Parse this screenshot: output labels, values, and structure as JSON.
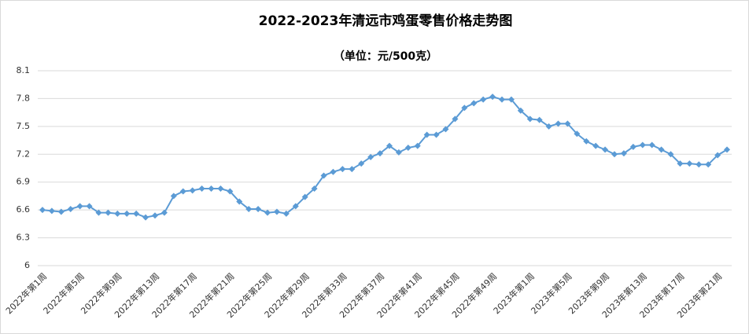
{
  "chart_data": {
    "type": "line",
    "title": "2022-2023年清远市鸡蛋零售价格走势图",
    "subtitle": "（单位：元/500克）",
    "categories": [
      "2022年第1周",
      null,
      null,
      null,
      "2022年第5周",
      null,
      null,
      null,
      "2022年第9周",
      null,
      null,
      null,
      "2022年第13周",
      null,
      null,
      null,
      "2022年第17周",
      null,
      null,
      null,
      "2022年第21周",
      null,
      null,
      null,
      "2022年第25周",
      null,
      null,
      null,
      "2022年第29周",
      null,
      null,
      null,
      "2022年第33周",
      null,
      null,
      null,
      "2022年第37周",
      null,
      null,
      null,
      "2022年第41周",
      null,
      null,
      null,
      "2022年第45周",
      null,
      null,
      null,
      "2022年第49周",
      null,
      null,
      null,
      "2023年第1周",
      null,
      null,
      null,
      "2023年第5周",
      null,
      null,
      null,
      "2023年第9周",
      null,
      null,
      null,
      "2023年第13周",
      null,
      null,
      null,
      "2023年第17周",
      null,
      null,
      null,
      "2023年第21周",
      null
    ],
    "series": [
      {
        "name": "鸡蛋零售价格",
        "color": "#5b9bd5",
        "values": [
          6.6,
          6.59,
          6.58,
          6.61,
          6.64,
          6.64,
          6.57,
          6.57,
          6.56,
          6.56,
          6.56,
          6.52,
          6.54,
          6.57,
          6.75,
          6.8,
          6.81,
          6.83,
          6.83,
          6.83,
          6.8,
          6.69,
          6.61,
          6.61,
          6.57,
          6.58,
          6.56,
          6.64,
          6.74,
          6.83,
          6.97,
          7.01,
          7.04,
          7.04,
          7.1,
          7.17,
          7.21,
          7.29,
          7.22,
          7.27,
          7.29,
          7.41,
          7.41,
          7.47,
          7.58,
          7.7,
          7.75,
          7.79,
          7.82,
          7.79,
          7.79,
          7.67,
          7.58,
          7.57,
          7.5,
          7.53,
          7.53,
          7.42,
          7.34,
          7.29,
          7.25,
          7.2,
          7.21,
          7.28,
          7.3,
          7.3,
          7.25,
          7.2,
          7.1,
          7.1,
          7.09,
          7.09,
          7.19,
          7.25
        ]
      }
    ],
    "ylim": [
      6,
      8.1
    ],
    "yticks": [
      6,
      6.3,
      6.6,
      6.9,
      7.2,
      7.5,
      7.8,
      8.1
    ],
    "grid": true
  }
}
